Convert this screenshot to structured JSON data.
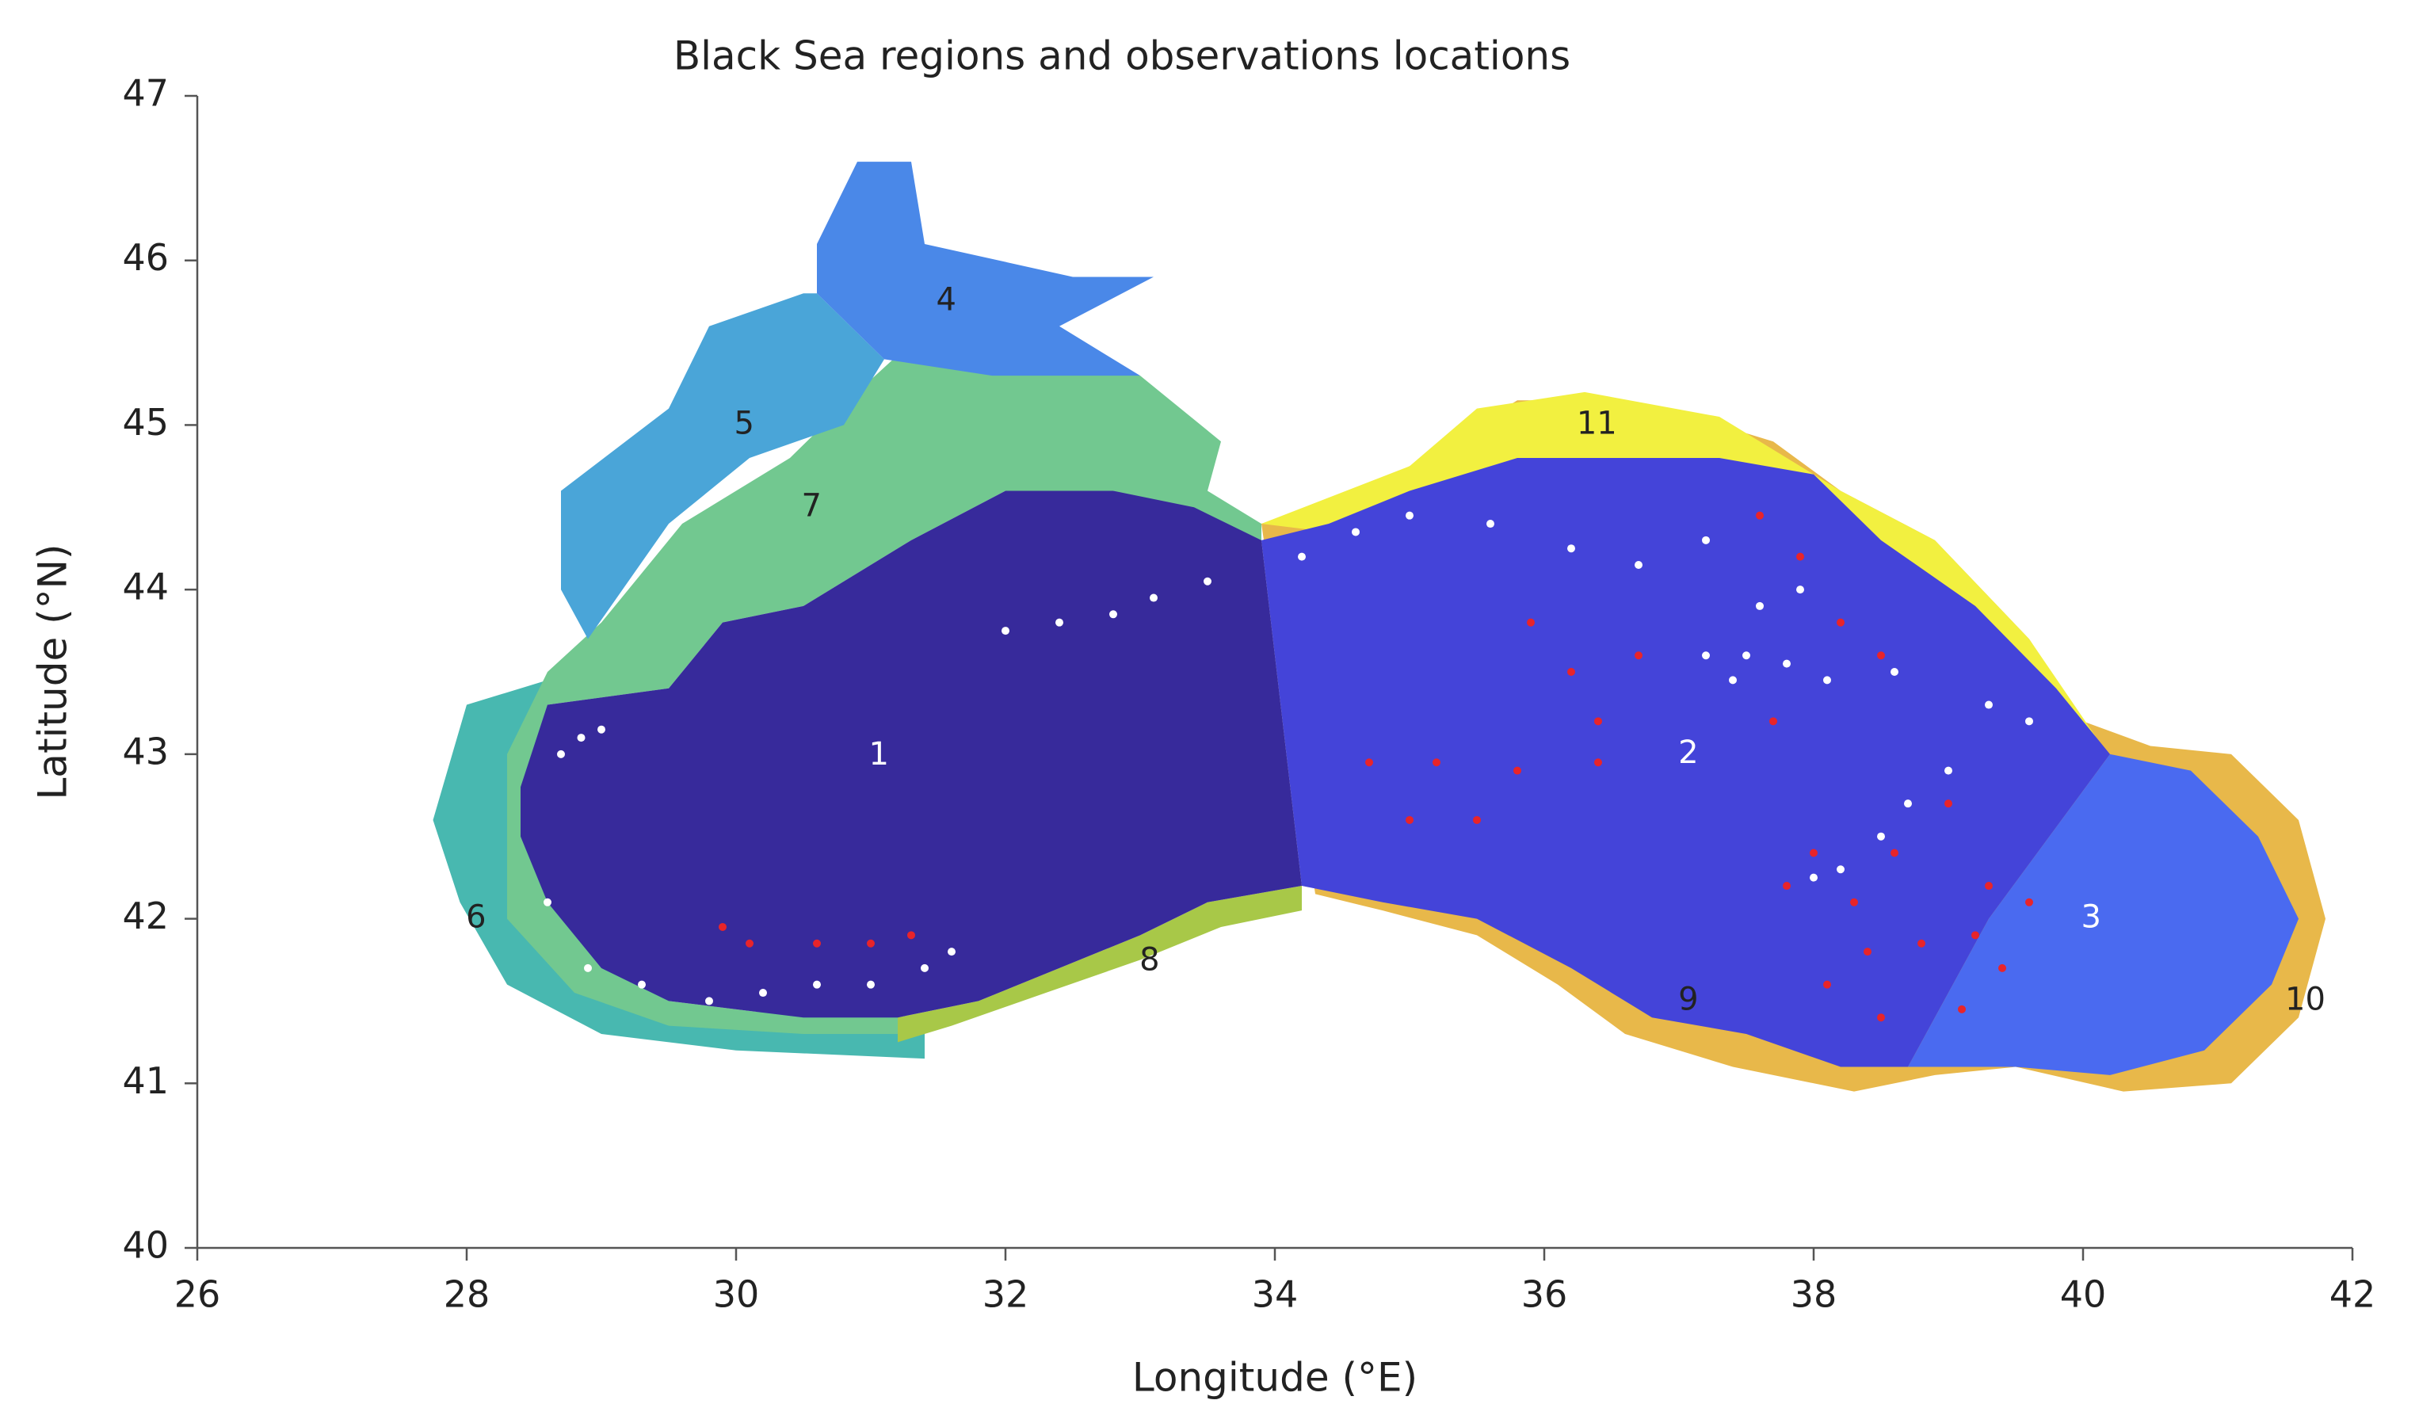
{
  "chart_data": {
    "type": "map",
    "title": "Black Sea regions and observations locations",
    "xlabel": "Longitude (°E)",
    "ylabel": "Latitude (°N)",
    "xlim": [
      26,
      42
    ],
    "ylim": [
      40,
      47
    ],
    "xticks": [
      26,
      28,
      30,
      32,
      34,
      36,
      38,
      40,
      42
    ],
    "yticks": [
      40,
      41,
      42,
      43,
      44,
      45,
      46,
      47
    ],
    "regions": [
      {
        "label": "1",
        "lon": 31.06,
        "lat": 42.99,
        "color": "#ffffff"
      },
      {
        "label": "2",
        "lon": 37.07,
        "lat": 43.0,
        "color": "#ffffff"
      },
      {
        "label": "3",
        "lon": 40.06,
        "lat": 42.0,
        "color": "#ffffff"
      },
      {
        "label": "4",
        "lon": 31.56,
        "lat": 45.75,
        "color": "#222222"
      },
      {
        "label": "5",
        "lon": 30.06,
        "lat": 45.0,
        "color": "#222222"
      },
      {
        "label": "6",
        "lon": 28.07,
        "lat": 42.0,
        "color": "#222222"
      },
      {
        "label": "7",
        "lon": 30.56,
        "lat": 44.5,
        "color": "#222222"
      },
      {
        "label": "8",
        "lon": 33.07,
        "lat": 41.74,
        "color": "#222222"
      },
      {
        "label": "9",
        "lon": 37.07,
        "lat": 41.5,
        "color": "#222222"
      },
      {
        "label": "10",
        "lon": 41.65,
        "lat": 41.5,
        "color": "#222222"
      },
      {
        "label": "11",
        "lon": 36.39,
        "lat": 45.0,
        "color": "#222222"
      }
    ],
    "series": [
      {
        "color": "#ffffff",
        "x": [
          28.7,
          28.85,
          29.0,
          28.6,
          28.9,
          29.3,
          29.8,
          30.2,
          30.6,
          31.0,
          31.4,
          31.6,
          32.0,
          32.4,
          32.8,
          33.1,
          33.5,
          34.2,
          34.6,
          35.0,
          35.6,
          36.2,
          36.7,
          37.2,
          37.6,
          37.9,
          37.5,
          37.8,
          38.1,
          38.6,
          39.3,
          39.6,
          39.0,
          38.7,
          38.5,
          38.2,
          38.0,
          37.2,
          37.4
        ],
        "y": [
          43.0,
          43.1,
          43.15,
          42.1,
          41.7,
          41.6,
          41.5,
          41.55,
          41.6,
          41.6,
          41.7,
          41.8,
          43.75,
          43.8,
          43.85,
          43.95,
          44.05,
          44.2,
          44.35,
          44.45,
          44.4,
          44.25,
          44.15,
          44.3,
          43.9,
          44.0,
          43.6,
          43.55,
          43.45,
          43.5,
          43.3,
          43.2,
          42.9,
          42.7,
          42.5,
          42.3,
          42.25,
          43.6,
          43.45
        ]
      },
      {
        "color": "#e8242a",
        "x": [
          29.9,
          30.1,
          30.6,
          31.0,
          31.3,
          35.9,
          36.2,
          36.4,
          36.7,
          34.7,
          35.2,
          35.8,
          36.4,
          35.0,
          35.5,
          37.6,
          37.9,
          38.2,
          38.5,
          37.7,
          38.0,
          37.8,
          38.3,
          38.6,
          39.0,
          39.3,
          39.6,
          39.2,
          38.8,
          38.4,
          38.1,
          38.5,
          39.1,
          39.4
        ],
        "y": [
          41.95,
          41.85,
          41.85,
          41.85,
          41.9,
          43.8,
          43.5,
          43.2,
          43.6,
          42.95,
          42.95,
          42.9,
          42.95,
          42.6,
          42.6,
          44.45,
          44.2,
          43.8,
          43.6,
          43.2,
          42.4,
          42.2,
          42.1,
          42.4,
          42.7,
          42.2,
          42.1,
          41.9,
          41.85,
          41.8,
          41.6,
          41.4,
          41.45,
          41.7
        ]
      }
    ]
  }
}
